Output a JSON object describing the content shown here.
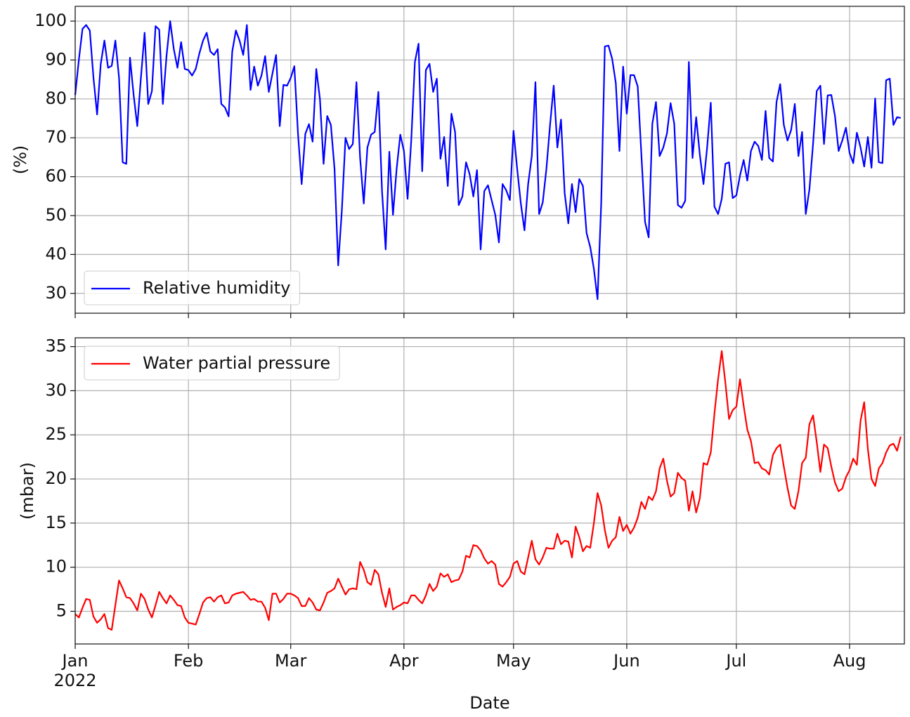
{
  "chart_data": [
    {
      "type": "line",
      "y_label": "(%)",
      "x": [
        0,
        1,
        2,
        3,
        4,
        5,
        6,
        7,
        8,
        9,
        10,
        11,
        12,
        13,
        14,
        15,
        16,
        17,
        18,
        19,
        20,
        21,
        22,
        23,
        24,
        25,
        26,
        27,
        28,
        29,
        30,
        31,
        32,
        33,
        34,
        35,
        36,
        37,
        38,
        39,
        40,
        41,
        42,
        43,
        44,
        45,
        46,
        47,
        48,
        49,
        50,
        51,
        52,
        53,
        54,
        55,
        56,
        57,
        58,
        59,
        60,
        61,
        62,
        63,
        64,
        65,
        66,
        67,
        68,
        69,
        70,
        71,
        72,
        73,
        74,
        75,
        76,
        77,
        78,
        79,
        80,
        81,
        82,
        83,
        84,
        85,
        86,
        87,
        88,
        89,
        90,
        91,
        92,
        93,
        94,
        95,
        96,
        97,
        98,
        99,
        100,
        101,
        102,
        103,
        104,
        105,
        106,
        107,
        108,
        109,
        110,
        111,
        112,
        113,
        114,
        115,
        116,
        117,
        118,
        119,
        120,
        121,
        122,
        123,
        124,
        125,
        126,
        127,
        128,
        129,
        130,
        131,
        132,
        133,
        134,
        135,
        136,
        137,
        138,
        139,
        140,
        141,
        142,
        143,
        144,
        145,
        146,
        147,
        148,
        149,
        150,
        151,
        152,
        153,
        154,
        155,
        156,
        157,
        158,
        159,
        160,
        161,
        162,
        163,
        164,
        165,
        166,
        167,
        168,
        169,
        170,
        171,
        172,
        173,
        174,
        175,
        176,
        177,
        178,
        179,
        180,
        181,
        182,
        183,
        184,
        185,
        186,
        187,
        188,
        189,
        190,
        191,
        192,
        193,
        194,
        195,
        196,
        197,
        198,
        199,
        200,
        201,
        202,
        203,
        204,
        205,
        206,
        207,
        208,
        209,
        210,
        211,
        212,
        213,
        214,
        215,
        216,
        217,
        218,
        219,
        220,
        221,
        222,
        223,
        224,
        225,
        226
      ],
      "series": [
        {
          "name": "Relative humidity",
          "color": "#0000ff",
          "values": [
            81,
            90,
            98,
            99,
            97.6,
            85.5,
            76,
            89,
            95,
            88,
            88.5,
            95,
            85.5,
            63.7,
            63.3,
            90.6,
            81,
            73,
            85.5,
            97,
            78.7,
            82,
            98.7,
            97.8,
            78.7,
            91,
            100,
            92.8,
            88,
            94.6,
            87.7,
            87.4,
            86,
            87.7,
            91.7,
            95,
            97,
            92.2,
            91.3,
            92.8,
            78.7,
            77.8,
            75.5,
            92.2,
            97.6,
            95,
            91.3,
            99,
            82.3,
            88.3,
            83.4,
            86,
            91,
            81.8,
            86.5,
            91.3,
            73,
            83.6,
            83.4,
            85.4,
            88.4,
            71,
            58.1,
            71,
            73.5,
            69,
            87.7,
            80,
            63.3,
            75.6,
            73.3,
            62,
            37.2,
            51.3,
            70,
            67.1,
            68.4,
            84.3,
            64.8,
            53.1,
            67.5,
            70.8,
            71.5,
            81.8,
            56.3,
            41.3,
            66.4,
            50.2,
            62,
            70.8,
            66.6,
            54.3,
            69.3,
            89.5,
            94.2,
            61.4,
            87.4,
            89,
            81.8,
            85.2,
            64.6,
            70.2,
            57.6,
            76.2,
            71.5,
            52.7,
            54.9,
            63.7,
            60.6,
            54.9,
            61.7,
            41.3,
            56.3,
            57.8,
            54,
            50.2,
            43.1,
            58.1,
            56.5,
            54,
            71.8,
            62,
            53.1,
            46.2,
            58.1,
            65.3,
            84.3,
            50.4,
            53.4,
            62,
            73.3,
            83.4,
            67.5,
            74.7,
            55.8,
            48,
            58.1,
            50.9,
            59.4,
            57.6,
            45.5,
            41.9,
            36.3,
            28.5,
            53.1,
            93.5,
            93.7,
            90.3,
            84.1,
            66.6,
            88.3,
            76.2,
            86.1,
            86.1,
            83.2,
            65.7,
            48.4,
            44.4,
            73.6,
            79.2,
            65.3,
            67.5,
            71.1,
            78.9,
            73.6,
            52.7,
            52,
            53.8,
            89.5,
            64.8,
            75.3,
            65.7,
            58.1,
            67.5,
            79,
            52.3,
            50.4,
            54.3,
            63.3,
            63.7,
            54.5,
            55.2,
            60.3,
            64.3,
            59,
            66.6,
            69,
            67.9,
            64.3,
            76.9,
            64.8,
            63.9,
            79.2,
            83.8,
            73.3,
            69.3,
            72,
            78.7,
            65.3,
            71.5,
            50.4,
            56.7,
            68.4,
            82,
            83.4,
            68.4,
            80.9,
            81,
            75.6,
            66.6,
            69.3,
            72.6,
            66.1,
            63.5,
            71.3,
            67.5,
            62.6,
            70.2,
            62.3,
            80.1,
            63.7,
            63.5,
            84.8,
            85.2,
            73.3,
            75.3,
            75.1
          ]
        }
      ],
      "xlim": [
        0,
        227
      ],
      "xticks": [
        0,
        31,
        59,
        90,
        120,
        151,
        181,
        212
      ],
      "ylim": [
        24.9,
        103.8
      ],
      "yticks": [
        30,
        40,
        50,
        60,
        70,
        80,
        90,
        100
      ],
      "grid": true,
      "legend": "lower left"
    },
    {
      "type": "line",
      "y_label": "(mbar)",
      "x_label": "Date",
      "x": [
        0,
        1,
        2,
        3,
        4,
        5,
        6,
        7,
        8,
        9,
        10,
        11,
        12,
        13,
        14,
        15,
        16,
        17,
        18,
        19,
        20,
        21,
        22,
        23,
        24,
        25,
        26,
        27,
        28,
        29,
        30,
        31,
        32,
        33,
        34,
        35,
        36,
        37,
        38,
        39,
        40,
        41,
        42,
        43,
        44,
        45,
        46,
        47,
        48,
        49,
        50,
        51,
        52,
        53,
        54,
        55,
        56,
        57,
        58,
        59,
        60,
        61,
        62,
        63,
        64,
        65,
        66,
        67,
        68,
        69,
        70,
        71,
        72,
        73,
        74,
        75,
        76,
        77,
        78,
        79,
        80,
        81,
        82,
        83,
        84,
        85,
        86,
        87,
        88,
        89,
        90,
        91,
        92,
        93,
        94,
        95,
        96,
        97,
        98,
        99,
        100,
        101,
        102,
        103,
        104,
        105,
        106,
        107,
        108,
        109,
        110,
        111,
        112,
        113,
        114,
        115,
        116,
        117,
        118,
        119,
        120,
        121,
        122,
        123,
        124,
        125,
        126,
        127,
        128,
        129,
        130,
        131,
        132,
        133,
        134,
        135,
        136,
        137,
        138,
        139,
        140,
        141,
        142,
        143,
        144,
        145,
        146,
        147,
        148,
        149,
        150,
        151,
        152,
        153,
        154,
        155,
        156,
        157,
        158,
        159,
        160,
        161,
        162,
        163,
        164,
        165,
        166,
        167,
        168,
        169,
        170,
        171,
        172,
        173,
        174,
        175,
        176,
        177,
        178,
        179,
        180,
        181,
        182,
        183,
        184,
        185,
        186,
        187,
        188,
        189,
        190,
        191,
        192,
        193,
        194,
        195,
        196,
        197,
        198,
        199,
        200,
        201,
        202,
        203,
        204,
        205,
        206,
        207,
        208,
        209,
        210,
        211,
        212,
        213,
        214,
        215,
        216,
        217,
        218,
        219,
        220,
        221,
        222,
        223,
        224,
        225,
        226
      ],
      "series": [
        {
          "name": "Water partial pressure",
          "color": "#ff0000",
          "values": [
            4.7,
            4.3,
            5.4,
            6.4,
            6.3,
            4.4,
            3.7,
            4.1,
            4.7,
            3.1,
            2.9,
            5.7,
            8.5,
            7.6,
            6.6,
            6.5,
            5.9,
            5.1,
            7.0,
            6.4,
            5.2,
            4.3,
            5.7,
            7.2,
            6.5,
            5.9,
            6.8,
            6.3,
            5.7,
            5.6,
            4.3,
            3.7,
            3.6,
            3.5,
            4.7,
            6.0,
            6.5,
            6.6,
            6.1,
            6.6,
            6.8,
            5.9,
            6.0,
            6.8,
            7.0,
            7.1,
            7.2,
            6.8,
            6.3,
            6.4,
            6.1,
            6.1,
            5.4,
            4.0,
            7.0,
            7.0,
            6.0,
            6.4,
            7.0,
            7.0,
            6.8,
            6.5,
            5.6,
            5.6,
            6.5,
            6.0,
            5.2,
            5.1,
            6.0,
            7.1,
            7.3,
            7.6,
            8.7,
            7.8,
            6.9,
            7.5,
            7.6,
            7.5,
            10.6,
            9.7,
            8.3,
            8.0,
            9.7,
            9.2,
            7.1,
            5.5,
            7.6,
            5.2,
            5.5,
            5.7,
            6.0,
            5.9,
            6.8,
            6.8,
            6.3,
            5.9,
            6.8,
            8.1,
            7.3,
            7.8,
            9.3,
            8.9,
            9.2,
            8.3,
            8.5,
            8.6,
            9.5,
            11.3,
            11.1,
            12.5,
            12.4,
            11.9,
            11.0,
            10.4,
            10.7,
            10.3,
            8.1,
            7.8,
            8.3,
            8.9,
            10.4,
            10.7,
            9.5,
            9.2,
            11.1,
            13.0,
            10.9,
            10.3,
            11.1,
            12.2,
            12.1,
            12.1,
            13.8,
            12.6,
            13.0,
            12.9,
            11.1,
            14.6,
            13.4,
            11.8,
            12.4,
            12.2,
            15.0,
            18.4,
            17.0,
            14.2,
            12.2,
            13.0,
            13.4,
            15.7,
            14.1,
            14.8,
            13.8,
            14.5,
            15.6,
            17.4,
            16.6,
            18.0,
            17.6,
            18.6,
            21.2,
            22.3,
            19.8,
            18.0,
            18.4,
            20.7,
            20.1,
            19.8,
            16.4,
            18.6,
            16.2,
            17.8,
            21.8,
            21.6,
            23.0,
            27.4,
            31.3,
            34.5,
            30.9,
            26.8,
            27.8,
            28.2,
            31.3,
            28.3,
            25.6,
            24.3,
            21.8,
            21.9,
            21.2,
            21.0,
            20.5,
            22.7,
            23.5,
            23.9,
            21.4,
            19.0,
            17.0,
            16.6,
            18.6,
            21.8,
            22.4,
            26.2,
            27.2,
            24.2,
            20.8,
            23.9,
            23.5,
            21.4,
            19.6,
            18.6,
            18.9,
            20.2,
            21.0,
            22.3,
            21.6,
            26.6,
            28.7,
            23.4,
            20.0,
            19.2,
            21.2,
            21.8,
            23.0,
            23.8,
            24.0,
            23.2,
            24.8
          ]
        }
      ],
      "xlim": [
        0,
        227
      ],
      "xticks": [
        {
          "value": 0,
          "label": "Jan\n2022"
        },
        {
          "value": 31,
          "label": "Feb"
        },
        {
          "value": 59,
          "label": "Mar"
        },
        {
          "value": 90,
          "label": "Apr"
        },
        {
          "value": 120,
          "label": "May"
        },
        {
          "value": 151,
          "label": "Jun"
        },
        {
          "value": 181,
          "label": "Jul"
        },
        {
          "value": 212,
          "label": "Aug"
        }
      ],
      "ylim": [
        1.3,
        36.0
      ],
      "yticks": [
        5,
        10,
        15,
        20,
        25,
        30,
        35
      ],
      "grid": true,
      "legend": "upper left"
    }
  ]
}
